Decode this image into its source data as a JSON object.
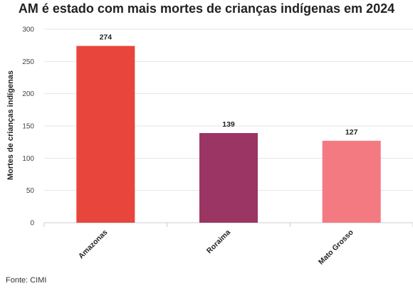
{
  "chart_data": {
    "type": "bar",
    "title": "AM é estado com mais mortes de crianças indígenas em 2024",
    "ylabel": "Mortes de crianças indígenas",
    "xlabel": "",
    "categories": [
      "Amazonas",
      "Roraima",
      "Mato Grosso"
    ],
    "values": [
      274,
      139,
      127
    ],
    "colors": [
      "#e8453c",
      "#9b3564",
      "#f47a82"
    ],
    "ylim": [
      0,
      300
    ],
    "yticks": [
      0,
      50,
      100,
      150,
      200,
      250,
      300
    ],
    "grid": true,
    "data_labels": [
      "274",
      "139",
      "127"
    ]
  },
  "source": "Fonte: CIMI"
}
